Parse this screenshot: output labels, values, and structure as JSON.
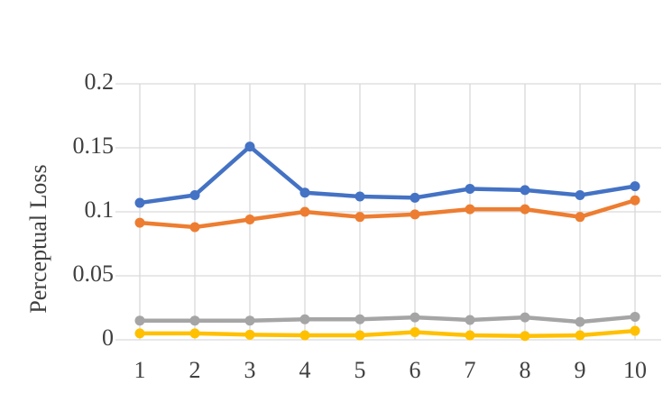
{
  "chart_data": {
    "type": "line",
    "y_label": "Perceptual Loss",
    "categories": [
      "1",
      "2",
      "3",
      "4",
      "5",
      "6",
      "7",
      "8",
      "9",
      "10"
    ],
    "series": [
      {
        "color": "#4472c4",
        "values": [
          0.107,
          0.113,
          0.151,
          0.115,
          0.112,
          0.111,
          0.118,
          0.117,
          0.113,
          0.12
        ]
      },
      {
        "color": "#ed7d31",
        "values": [
          0.0915,
          0.088,
          0.094,
          0.1,
          0.096,
          0.098,
          0.102,
          0.102,
          0.096,
          0.109
        ]
      },
      {
        "color": "#a5a5a5",
        "values": [
          0.015,
          0.015,
          0.015,
          0.016,
          0.016,
          0.0175,
          0.0155,
          0.0175,
          0.014,
          0.018
        ]
      },
      {
        "color": "#ffc000",
        "values": [
          0.005,
          0.005,
          0.004,
          0.0035,
          0.0035,
          0.006,
          0.0035,
          0.003,
          0.0035,
          0.007
        ]
      }
    ],
    "ylim": [
      0,
      0.2
    ],
    "yticks": [
      0,
      0.05,
      0.1,
      0.15,
      0.2
    ],
    "grid": true
  }
}
